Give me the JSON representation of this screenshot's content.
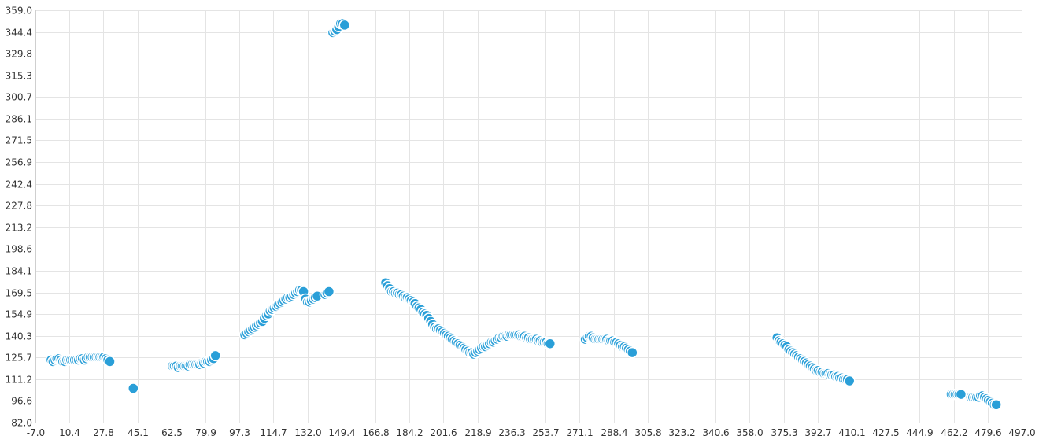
{
  "chart_data": {
    "type": "scatter",
    "title": "",
    "xlabel": "",
    "ylabel": "",
    "xlim": [
      -7.0,
      497.0
    ],
    "ylim": [
      82.0,
      359.0
    ],
    "grid": true,
    "x_ticks": [
      "-7.0",
      "10.4",
      "27.8",
      "45.1",
      "62.5",
      "79.9",
      "97.3",
      "114.7",
      "132.0",
      "149.4",
      "166.8",
      "184.2",
      "201.6",
      "218.9",
      "236.3",
      "253.7",
      "271.1",
      "288.4",
      "305.8",
      "323.2",
      "340.6",
      "358.0",
      "375.3",
      "392.7",
      "410.1",
      "427.5",
      "444.9",
      "462.2",
      "479.6",
      "497.0"
    ],
    "y_ticks": [
      "359.0",
      "344.4",
      "329.8",
      "315.3",
      "300.7",
      "286.1",
      "271.5",
      "256.9",
      "242.4",
      "227.8",
      "213.2",
      "198.6",
      "184.1",
      "169.5",
      "154.9",
      "140.3",
      "125.7",
      "111.2",
      "96.6",
      "82.0"
    ],
    "series": [
      {
        "color": "#2a9fd8",
        "points": [
          [
            1,
            124
          ],
          [
            2,
            123
          ],
          [
            3,
            124
          ],
          [
            4,
            125
          ],
          [
            5,
            125
          ],
          [
            6,
            124
          ],
          [
            7,
            123
          ],
          [
            8,
            123
          ],
          [
            9,
            124
          ],
          [
            10,
            124
          ],
          [
            11,
            124
          ],
          [
            12,
            124
          ],
          [
            13,
            124
          ],
          [
            14,
            124
          ],
          [
            15,
            124
          ],
          [
            16,
            125
          ],
          [
            17,
            125
          ],
          [
            18,
            124
          ],
          [
            19,
            125
          ],
          [
            20,
            126
          ],
          [
            21,
            126
          ],
          [
            22,
            126
          ],
          [
            23,
            126
          ],
          [
            24,
            126
          ],
          [
            25,
            126
          ],
          [
            26,
            126
          ],
          [
            27,
            126
          ],
          [
            28,
            126
          ],
          [
            29,
            125
          ],
          [
            30,
            124
          ],
          [
            31,
            123
          ],
          [
            43,
            105
          ],
          [
            63,
            120
          ],
          [
            64,
            120
          ],
          [
            65,
            120
          ],
          [
            66,
            119
          ],
          [
            67,
            120
          ],
          [
            68,
            120
          ],
          [
            69,
            120
          ],
          [
            70,
            120
          ],
          [
            71,
            120
          ],
          [
            72,
            121
          ],
          [
            73,
            121
          ],
          [
            74,
            121
          ],
          [
            75,
            121
          ],
          [
            76,
            121
          ],
          [
            77,
            121
          ],
          [
            78,
            122
          ],
          [
            79,
            122
          ],
          [
            80,
            123
          ],
          [
            81,
            123
          ],
          [
            82,
            123
          ],
          [
            83,
            124
          ],
          [
            84,
            125
          ],
          [
            85,
            127
          ],
          [
            100,
            141
          ],
          [
            101,
            142
          ],
          [
            102,
            143
          ],
          [
            103,
            144
          ],
          [
            104,
            145
          ],
          [
            105,
            146
          ],
          [
            106,
            147
          ],
          [
            107,
            148
          ],
          [
            108,
            149
          ],
          [
            109,
            150
          ],
          [
            110,
            152
          ],
          [
            111,
            154
          ],
          [
            112,
            155
          ],
          [
            113,
            157
          ],
          [
            114,
            158
          ],
          [
            115,
            159
          ],
          [
            116,
            160
          ],
          [
            117,
            161
          ],
          [
            118,
            162
          ],
          [
            119,
            163
          ],
          [
            120,
            164
          ],
          [
            121,
            165
          ],
          [
            122,
            166
          ],
          [
            123,
            166
          ],
          [
            124,
            167
          ],
          [
            125,
            168
          ],
          [
            126,
            169
          ],
          [
            127,
            170
          ],
          [
            128,
            171
          ],
          [
            129,
            171
          ],
          [
            130,
            170
          ],
          [
            131,
            165
          ],
          [
            132,
            163
          ],
          [
            133,
            163
          ],
          [
            134,
            164
          ],
          [
            135,
            165
          ],
          [
            136,
            166
          ],
          [
            137,
            167
          ],
          [
            141,
            168
          ],
          [
            142,
            169
          ],
          [
            143,
            170
          ],
          [
            145,
            344
          ],
          [
            146,
            345
          ],
          [
            147,
            346
          ],
          [
            148,
            348
          ],
          [
            149,
            350
          ],
          [
            150,
            350
          ],
          [
            151,
            349
          ],
          [
            172,
            176
          ],
          [
            173,
            174
          ],
          [
            174,
            172
          ],
          [
            175,
            170
          ],
          [
            176,
            170
          ],
          [
            177,
            169
          ],
          [
            178,
            169
          ],
          [
            179,
            168
          ],
          [
            180,
            168
          ],
          [
            181,
            167
          ],
          [
            182,
            166
          ],
          [
            183,
            166
          ],
          [
            184,
            165
          ],
          [
            185,
            164
          ],
          [
            186,
            163
          ],
          [
            187,
            162
          ],
          [
            188,
            160
          ],
          [
            189,
            159
          ],
          [
            190,
            158
          ],
          [
            191,
            156
          ],
          [
            192,
            155
          ],
          [
            193,
            154
          ],
          [
            194,
            152
          ],
          [
            195,
            150
          ],
          [
            196,
            148
          ],
          [
            197,
            146
          ],
          [
            198,
            145
          ],
          [
            199,
            145
          ],
          [
            200,
            144
          ],
          [
            201,
            143
          ],
          [
            202,
            142
          ],
          [
            203,
            141
          ],
          [
            204,
            140
          ],
          [
            205,
            139
          ],
          [
            206,
            138
          ],
          [
            207,
            137
          ],
          [
            208,
            136
          ],
          [
            209,
            135
          ],
          [
            210,
            134
          ],
          [
            211,
            133
          ],
          [
            212,
            132
          ],
          [
            213,
            131
          ],
          [
            214,
            130
          ],
          [
            215,
            129
          ],
          [
            216,
            129
          ],
          [
            217,
            128
          ],
          [
            218,
            129
          ],
          [
            219,
            130
          ],
          [
            220,
            131
          ],
          [
            221,
            132
          ],
          [
            222,
            133
          ],
          [
            223,
            133
          ],
          [
            224,
            134
          ],
          [
            225,
            135
          ],
          [
            226,
            136
          ],
          [
            227,
            136
          ],
          [
            228,
            137
          ],
          [
            229,
            138
          ],
          [
            230,
            139
          ],
          [
            231,
            139
          ],
          [
            232,
            140
          ],
          [
            233,
            140
          ],
          [
            234,
            140
          ],
          [
            235,
            141
          ],
          [
            236,
            141
          ],
          [
            237,
            141
          ],
          [
            238,
            141
          ],
          [
            239,
            141
          ],
          [
            240,
            141
          ],
          [
            241,
            140
          ],
          [
            242,
            140
          ],
          [
            243,
            140
          ],
          [
            244,
            139
          ],
          [
            245,
            139
          ],
          [
            246,
            138
          ],
          [
            247,
            138
          ],
          [
            248,
            138
          ],
          [
            249,
            138
          ],
          [
            250,
            137
          ],
          [
            251,
            137
          ],
          [
            252,
            136
          ],
          [
            253,
            136
          ],
          [
            254,
            136
          ],
          [
            255,
            135
          ],
          [
            256,
            135
          ],
          [
            274,
            138
          ],
          [
            275,
            139
          ],
          [
            276,
            140
          ],
          [
            277,
            140
          ],
          [
            278,
            139
          ],
          [
            279,
            138
          ],
          [
            280,
            138
          ],
          [
            281,
            138
          ],
          [
            282,
            138
          ],
          [
            283,
            138
          ],
          [
            284,
            138
          ],
          [
            285,
            138
          ],
          [
            286,
            137
          ],
          [
            287,
            137
          ],
          [
            288,
            137
          ],
          [
            289,
            136
          ],
          [
            290,
            136
          ],
          [
            291,
            135
          ],
          [
            292,
            134
          ],
          [
            293,
            133
          ],
          [
            294,
            133
          ],
          [
            295,
            132
          ],
          [
            296,
            131
          ],
          [
            297,
            130
          ],
          [
            298,
            129
          ],
          [
            372,
            139
          ],
          [
            373,
            137
          ],
          [
            374,
            136
          ],
          [
            375,
            135
          ],
          [
            376,
            134
          ],
          [
            377,
            133
          ],
          [
            378,
            131
          ],
          [
            379,
            130
          ],
          [
            380,
            129
          ],
          [
            381,
            128
          ],
          [
            382,
            127
          ],
          [
            383,
            126
          ],
          [
            384,
            125
          ],
          [
            385,
            124
          ],
          [
            386,
            123
          ],
          [
            387,
            122
          ],
          [
            388,
            121
          ],
          [
            389,
            120
          ],
          [
            390,
            119
          ],
          [
            391,
            118
          ],
          [
            392,
            117
          ],
          [
            393,
            117
          ],
          [
            394,
            116
          ],
          [
            395,
            116
          ],
          [
            396,
            115
          ],
          [
            397,
            115
          ],
          [
            398,
            115
          ],
          [
            399,
            114
          ],
          [
            400,
            114
          ],
          [
            401,
            114
          ],
          [
            402,
            113
          ],
          [
            403,
            113
          ],
          [
            404,
            112
          ],
          [
            405,
            112
          ],
          [
            406,
            111
          ],
          [
            407,
            111
          ],
          [
            408,
            111
          ],
          [
            409,
            110
          ],
          [
            461,
            101
          ],
          [
            462,
            101
          ],
          [
            463,
            101
          ],
          [
            464,
            101
          ],
          [
            465,
            101
          ],
          [
            466,
            101
          ],
          [
            471,
            99
          ],
          [
            472,
            99
          ],
          [
            473,
            99
          ],
          [
            474,
            99
          ],
          [
            475,
            99
          ],
          [
            476,
            100
          ],
          [
            477,
            100
          ],
          [
            478,
            99
          ],
          [
            479,
            98
          ],
          [
            480,
            97
          ],
          [
            481,
            96
          ],
          [
            482,
            95
          ],
          [
            483,
            94
          ],
          [
            484,
            94
          ]
        ]
      }
    ]
  }
}
